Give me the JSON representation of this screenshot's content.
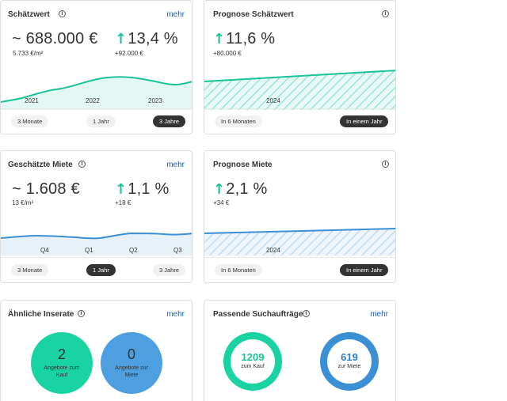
{
  "colors": {
    "accent_green": "#19c29a",
    "accent_blue": "#3b8fd4",
    "link": "#1a5fb4",
    "pill_active": "#333333"
  },
  "cards": {
    "estimate": {
      "title": "Schätzwert",
      "more": "mehr",
      "value": "~ 688.000 €",
      "per_sqm": "5.733 €/m²",
      "change": "13,4 %",
      "change_abs": "+92.000 €",
      "ticks": [
        "2021",
        "2022",
        "2023"
      ],
      "pills": [
        "3 Monate",
        "1 Jahr",
        "3 Jahre"
      ],
      "active_pill": "3 Jahre"
    },
    "forecast_estimate": {
      "title": "Prognose Schätzwert",
      "change": "11,6 %",
      "change_abs": "+80.000 €",
      "ticks": [
        "2024"
      ],
      "pills": [
        "In 6 Monaten",
        "In einem Jahr"
      ],
      "active_pill": "In einem Jahr"
    },
    "rent": {
      "title": "Geschätzte Miete",
      "more": "mehr",
      "value": "~ 1.608 €",
      "per_sqm": "13 €/m²",
      "change": "1,1 %",
      "change_abs": "+18 €",
      "ticks": [
        "Q4",
        "Q1",
        "Q2",
        "Q3"
      ],
      "pills": [
        "3 Monate",
        "1 Jahr",
        "3 Jahre"
      ],
      "active_pill": "1 Jahr"
    },
    "forecast_rent": {
      "title": "Prognose Miete",
      "change": "2,1 %",
      "change_abs": "+34 €",
      "ticks": [
        "2024"
      ],
      "pills": [
        "In 6 Monaten",
        "In einem Jahr"
      ],
      "active_pill": "In einem Jahr"
    },
    "similar": {
      "title": "Ähnliche Inserate",
      "more": "mehr",
      "buy_count": "2",
      "buy_label": "Angebote zum Kauf",
      "rent_count": "0",
      "rent_label": "Angebote zur Miete"
    },
    "searches": {
      "title": "Passende Suchaufträge",
      "more": "mehr",
      "buy_count": "1209",
      "buy_label": "zum Kauf",
      "rent_count": "619",
      "rent_label": "zur Miete"
    }
  }
}
